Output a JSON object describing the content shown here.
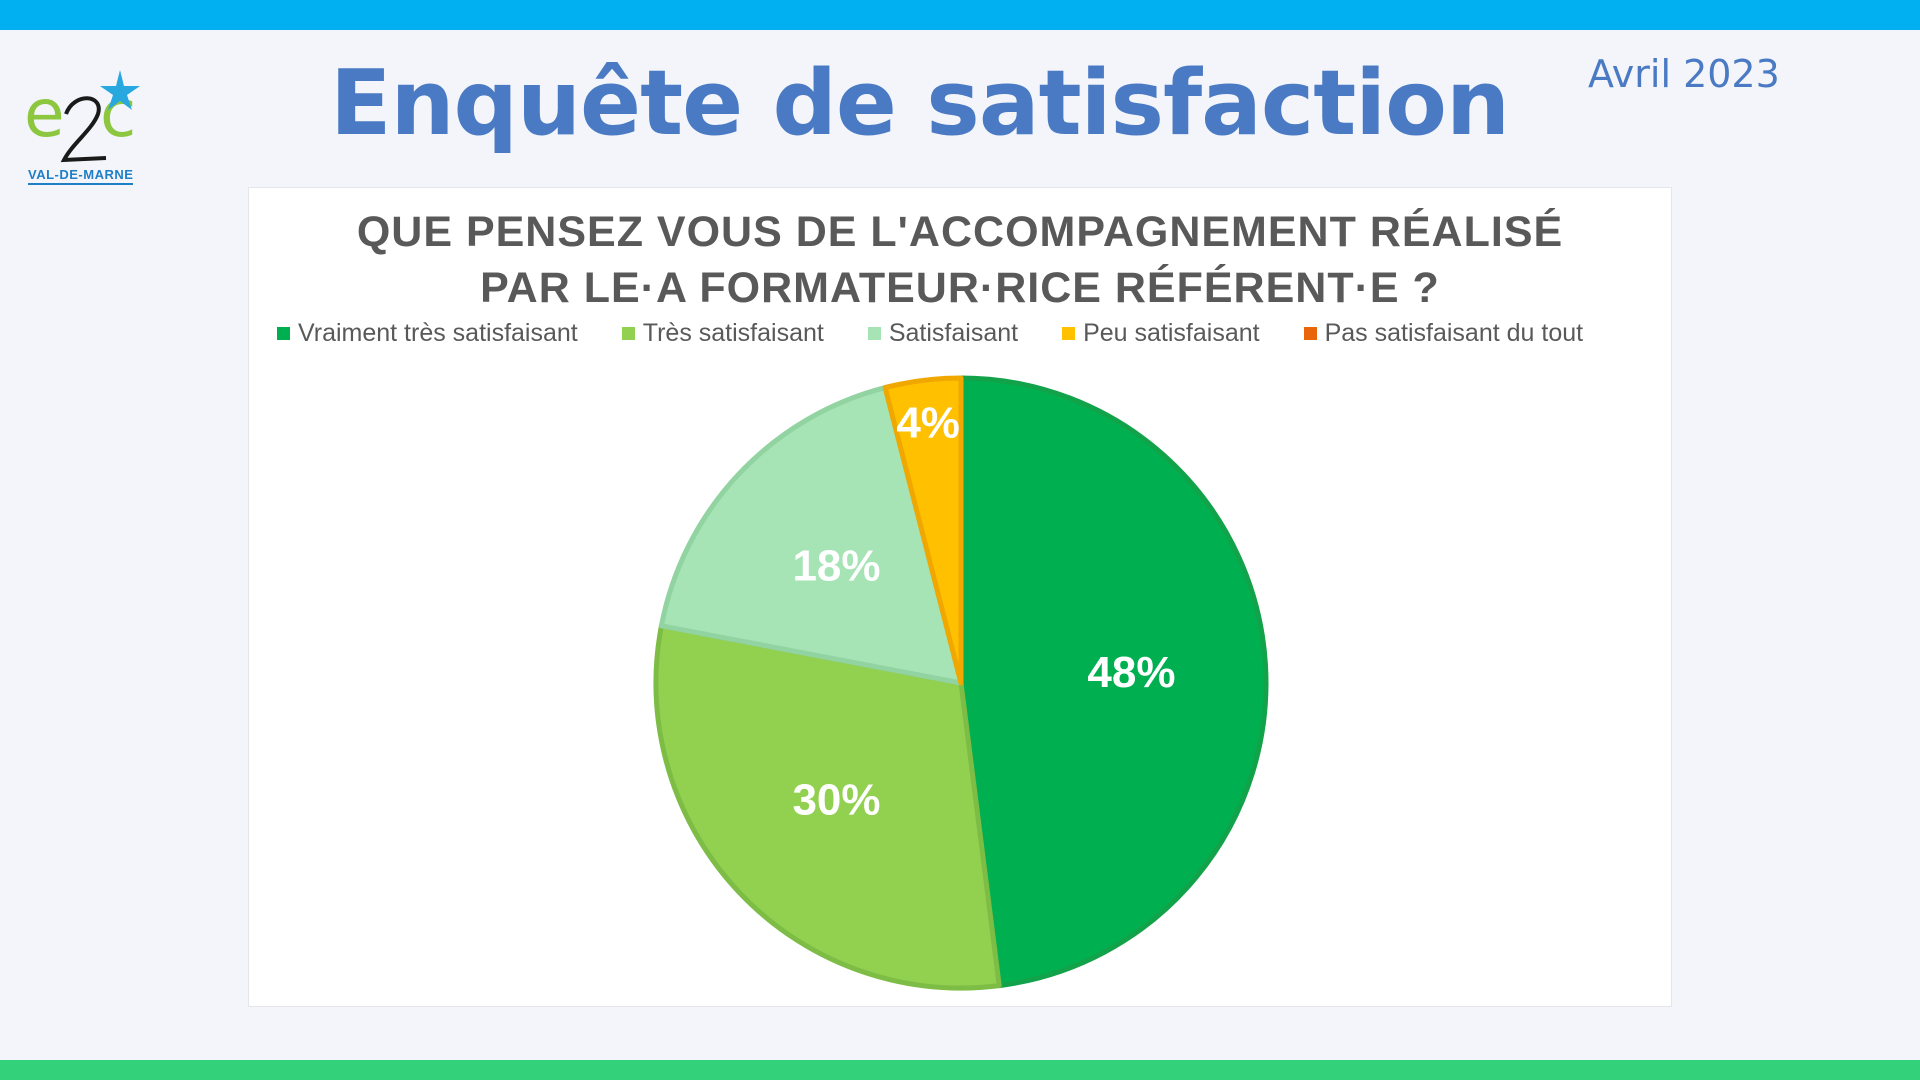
{
  "header": {
    "title": "Enquête de satisfaction",
    "date": "Avril 2023"
  },
  "logo": {
    "mark": "e2c",
    "caption": "VAL-DE-MARNE"
  },
  "colors": {
    "top_bar": "#00b0f0",
    "bottom_bar": "#33d17a",
    "title": "#4a7ac4"
  },
  "chart_data": {
    "type": "pie",
    "title_lines": [
      "QUE PENSEZ VOUS DE L'ACCOMPAGNEMENT RÉALISÉ",
      "PAR LE·A FORMATEUR·RICE RÉFÉRENT·E ?"
    ],
    "legend_position": "top",
    "slices": [
      {
        "label": "Vraiment très satisfaisant",
        "value": 48,
        "value_label": "48%",
        "color": "#00b050",
        "edge": "#12a24a"
      },
      {
        "label": "Très satisfaisant",
        "value": 30,
        "value_label": "30%",
        "color": "#92d050",
        "edge": "#7dbd45"
      },
      {
        "label": "Satisfaisant",
        "value": 18,
        "value_label": "18%",
        "color": "#a6e3b5",
        "edge": "#92d3a2"
      },
      {
        "label": "Peu satisfaisant",
        "value": 4,
        "value_label": "4%",
        "color": "#ffc000",
        "edge": "#f0a800"
      },
      {
        "label": "Pas satisfaisant du tout",
        "value": 0,
        "value_label": "",
        "color": "#e8650a",
        "edge": "#e8650a"
      }
    ]
  }
}
